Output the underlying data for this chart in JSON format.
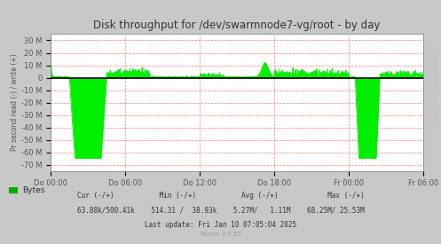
{
  "title": "Disk throughput for /dev/swarmnode7-vg/root - by day",
  "ylabel": "Pr second read (-) / write (+)",
  "background_color": "#C8C8C8",
  "plot_background": "#FFFFFF",
  "grid_color": "#FF8080",
  "line_color": "#00EE00",
  "zero_line_color": "#000000",
  "border_color": "#AAAAAA",
  "ylim": [
    -75,
    35
  ],
  "yticks": [
    -70,
    -60,
    -50,
    -40,
    -30,
    -20,
    -10,
    0,
    10,
    20,
    30
  ],
  "ytick_labels": [
    "-70 M",
    "-60 M",
    "-50 M",
    "-40 M",
    "-30 M",
    "-20 M",
    "-10 M",
    "0",
    "10 M",
    "20 M",
    "30 M"
  ],
  "xtick_labels": [
    "Do 00:00",
    "Do 06:00",
    "Do 12:00",
    "Do 18:00",
    "Fr 00:00",
    "Fr 06:00"
  ],
  "xtick_positions": [
    0,
    6,
    12,
    18,
    24,
    30
  ],
  "legend_label": "Bytes",
  "legend_color": "#00AA00",
  "munin_text": "Munin 2.0.57",
  "watermark": "RRDTOOL / TOBI OETIKER",
  "title_color": "#333333",
  "footer_color": "#333333",
  "munin_color": "#999999"
}
